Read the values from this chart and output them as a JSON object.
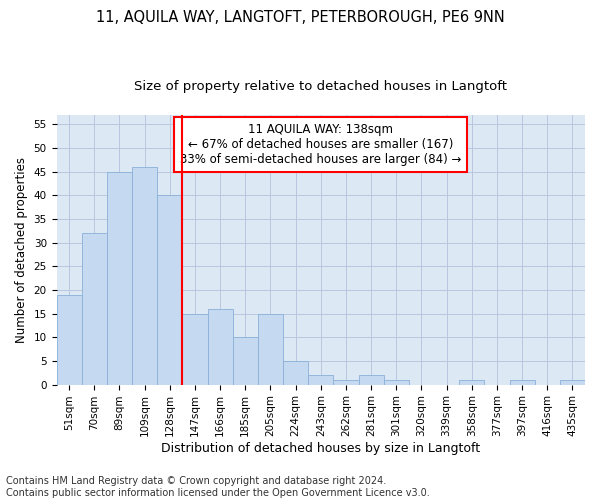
{
  "title": "11, AQUILA WAY, LANGTOFT, PETERBOROUGH, PE6 9NN",
  "subtitle": "Size of property relative to detached houses in Langtoft",
  "xlabel": "Distribution of detached houses by size in Langtoft",
  "ylabel": "Number of detached properties",
  "bar_labels": [
    "51sqm",
    "70sqm",
    "89sqm",
    "109sqm",
    "128sqm",
    "147sqm",
    "166sqm",
    "185sqm",
    "205sqm",
    "224sqm",
    "243sqm",
    "262sqm",
    "281sqm",
    "301sqm",
    "320sqm",
    "339sqm",
    "358sqm",
    "377sqm",
    "397sqm",
    "416sqm",
    "435sqm"
  ],
  "bar_values": [
    19,
    32,
    45,
    46,
    40,
    15,
    16,
    10,
    15,
    5,
    2,
    1,
    2,
    1,
    0,
    0,
    1,
    0,
    1,
    0,
    1
  ],
  "bar_color": "#c5d9f0",
  "bar_edge_color": "#8ab0d8",
  "annotation_text": "11 AQUILA WAY: 138sqm\n← 67% of detached houses are smaller (167)\n33% of semi-detached houses are larger (84) →",
  "annotation_box_color": "white",
  "annotation_box_edge_color": "red",
  "vline_x": 5,
  "vline_color": "red",
  "ylim": [
    0,
    57
  ],
  "yticks": [
    0,
    5,
    10,
    15,
    20,
    25,
    30,
    35,
    40,
    45,
    50,
    55
  ],
  "footnote": "Contains HM Land Registry data © Crown copyright and database right 2024.\nContains public sector information licensed under the Open Government Licence v3.0.",
  "bg_color": "#dde8f5",
  "grid_color": "#b8c8e0",
  "title_fontsize": 10.5,
  "subtitle_fontsize": 9.5,
  "annotation_fontsize": 8.5,
  "xlabel_fontsize": 9,
  "ylabel_fontsize": 8.5,
  "tick_fontsize": 7.5,
  "footnote_fontsize": 7
}
